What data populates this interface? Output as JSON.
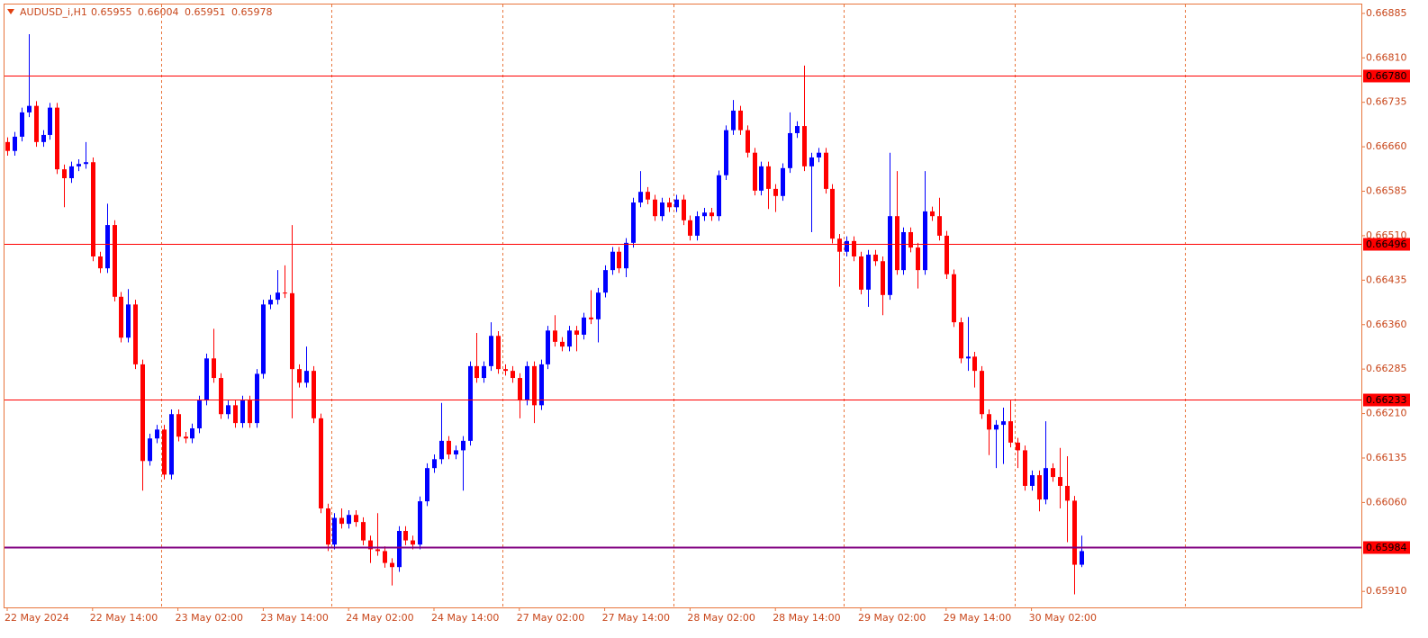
{
  "chart_data": {
    "type": "candlestick",
    "title": "AUDUSD_i,H1",
    "categories": [
      "22 May 2024",
      null,
      null,
      null,
      null,
      null,
      null,
      null,
      null,
      null,
      null,
      null,
      "22 May 14:00",
      null,
      null,
      null,
      null,
      null,
      null,
      null,
      null,
      null,
      null,
      null,
      "23 May 02:00",
      null,
      null,
      null,
      null,
      null,
      null,
      null,
      null,
      null,
      null,
      null,
      "23 May 14:00",
      null,
      null,
      null,
      null,
      null,
      null,
      null,
      null,
      null,
      null,
      null,
      "24 May 02:00",
      null,
      null,
      null,
      null,
      null,
      null,
      null,
      null,
      null,
      null,
      null,
      "24 May 14:00",
      null,
      null,
      null,
      null,
      null,
      null,
      null,
      null,
      null,
      null,
      null,
      "27 May 02:00",
      null,
      null,
      null,
      null,
      null,
      null,
      null,
      null,
      null,
      null,
      null,
      "27 May 14:00",
      null,
      null,
      null,
      null,
      null,
      null,
      null,
      null,
      null,
      null,
      null,
      "28 May 02:00",
      null,
      null,
      null,
      null,
      null,
      null,
      null,
      null,
      null,
      null,
      null,
      "28 May 14:00",
      null,
      null,
      null,
      null,
      null,
      null,
      null,
      null,
      null,
      null,
      null,
      "29 May 02:00",
      null,
      null,
      null,
      null,
      null,
      null,
      null,
      null,
      null,
      null,
      null,
      "29 May 14:00",
      null,
      null,
      null,
      null,
      null,
      null,
      null,
      null,
      null,
      null,
      null,
      "30 May 02:00",
      null,
      null,
      null,
      null,
      null,
      null,
      null
    ],
    "open": [
      0.66668,
      0.66653,
      0.66677,
      0.66718,
      0.66729,
      0.66668,
      0.6668,
      0.66726,
      0.66622,
      0.66607,
      0.66627,
      0.66631,
      0.66634,
      0.66475,
      0.66455,
      0.66528,
      0.66407,
      0.66338,
      0.66394,
      0.66293,
      0.6613,
      0.66168,
      0.66183,
      0.66107,
      0.66209,
      0.66171,
      0.66168,
      0.66185,
      0.66232,
      0.66303,
      0.6627,
      0.66209,
      0.66224,
      0.66194,
      0.66232,
      0.66194,
      0.66277,
      0.66394,
      0.66402,
      0.66414,
      0.66413,
      0.66285,
      0.66262,
      0.66282,
      0.66202,
      0.6605,
      0.65989,
      0.66034,
      0.66024,
      0.66039,
      0.66027,
      0.65996,
      0.65981,
      0.65978,
      0.65958,
      0.65951,
      0.66012,
      0.65996,
      0.65989,
      0.66062,
      0.66118,
      0.66133,
      0.66164,
      0.66141,
      0.66148,
      0.66164,
      0.6629,
      0.6627,
      0.6629,
      0.66341,
      0.66285,
      0.66282,
      0.6627,
      0.66232,
      0.6629,
      0.66224,
      0.66293,
      0.6635,
      0.66331,
      0.66323,
      0.6635,
      0.66343,
      0.66372,
      0.66369,
      0.66414,
      0.66452,
      0.66483,
      0.66455,
      0.66498,
      0.66566,
      0.66584,
      0.66571,
      0.66543,
      0.66566,
      0.66558,
      0.66571,
      0.66536,
      0.6651,
      0.66543,
      0.66549,
      0.66543,
      0.66612,
      0.66688,
      0.66721,
      0.66688,
      0.6665,
      0.66586,
      0.66627,
      0.66589,
      0.66577,
      0.66624,
      0.66683,
      0.66695,
      0.66627,
      0.66642,
      0.6665,
      0.66589,
      0.66505,
      0.66483,
      0.66501,
      0.66475,
      0.66419,
      0.66478,
      0.66467,
      0.6641,
      0.66543,
      0.66452,
      0.66516,
      0.6649,
      0.66452,
      0.66551,
      0.66543,
      0.6651,
      0.66445,
      0.66364,
      0.66303,
      0.66306,
      0.66282,
      0.66209,
      0.66183,
      0.66191,
      0.66197,
      0.66161,
      0.66148,
      0.66088,
      0.66106,
      0.66065,
      0.66118,
      0.66103,
      0.66088,
      0.66063,
      0.65955
    ],
    "high": [
      0.66676,
      0.66685,
      0.66726,
      0.6685,
      0.66737,
      0.66688,
      0.66734,
      0.66734,
      0.6663,
      0.66635,
      0.66639,
      0.66668,
      0.66642,
      0.66483,
      0.66564,
      0.66536,
      0.66415,
      0.6642,
      0.66402,
      0.66301,
      0.66176,
      0.66191,
      0.66191,
      0.66217,
      0.66217,
      0.66179,
      0.66193,
      0.6624,
      0.66311,
      0.66353,
      0.66278,
      0.66232,
      0.66232,
      0.6624,
      0.6624,
      0.66285,
      0.66402,
      0.6641,
      0.66452,
      0.6646,
      0.66528,
      0.66293,
      0.66323,
      0.6629,
      0.6621,
      0.66058,
      0.66042,
      0.6605,
      0.66047,
      0.66047,
      0.66035,
      0.66004,
      0.66042,
      0.65986,
      0.65966,
      0.6602,
      0.6602,
      0.66004,
      0.6607,
      0.66126,
      0.66141,
      0.66228,
      0.66172,
      0.66156,
      0.66172,
      0.66298,
      0.66346,
      0.66298,
      0.66364,
      0.66349,
      0.66293,
      0.6629,
      0.66278,
      0.66298,
      0.66298,
      0.66301,
      0.66358,
      0.66376,
      0.66339,
      0.66358,
      0.66358,
      0.6638,
      0.66418,
      0.66422,
      0.6646,
      0.66491,
      0.66491,
      0.66506,
      0.66574,
      0.66619,
      0.66592,
      0.66579,
      0.66574,
      0.66574,
      0.66579,
      0.66579,
      0.66544,
      0.66551,
      0.66557,
      0.66557,
      0.6662,
      0.66696,
      0.66739,
      0.66729,
      0.66696,
      0.66658,
      0.66635,
      0.66635,
      0.66597,
      0.66632,
      0.66718,
      0.66703,
      0.66797,
      0.6665,
      0.66658,
      0.66658,
      0.66597,
      0.66513,
      0.66509,
      0.66509,
      0.66483,
      0.66486,
      0.66486,
      0.66475,
      0.6665,
      0.66619,
      0.66524,
      0.66524,
      0.66498,
      0.66619,
      0.66559,
      0.66574,
      0.66518,
      0.66453,
      0.66372,
      0.66373,
      0.66314,
      0.6629,
      0.66217,
      0.66199,
      0.6622,
      0.66232,
      0.66169,
      0.66156,
      0.66114,
      0.66114,
      0.66197,
      0.66126,
      0.66152,
      0.66138,
      0.66071,
      0.66004
    ],
    "low": [
      0.66645,
      0.66645,
      0.66669,
      0.6671,
      0.6666,
      0.6666,
      0.66672,
      0.66614,
      0.66558,
      0.66599,
      0.66619,
      0.66623,
      0.66467,
      0.66447,
      0.66447,
      0.66399,
      0.6633,
      0.6633,
      0.66285,
      0.6608,
      0.66122,
      0.6616,
      0.66099,
      0.66099,
      0.66163,
      0.6616,
      0.6616,
      0.66177,
      0.66224,
      0.66262,
      0.66201,
      0.66201,
      0.66186,
      0.66186,
      0.66186,
      0.66186,
      0.66269,
      0.66386,
      0.66394,
      0.66405,
      0.66202,
      0.66254,
      0.66254,
      0.66194,
      0.66042,
      0.65978,
      0.65981,
      0.66016,
      0.66016,
      0.66019,
      0.65988,
      0.65958,
      0.6597,
      0.6595,
      0.6592,
      0.65943,
      0.65988,
      0.65981,
      0.65981,
      0.66054,
      0.6611,
      0.66125,
      0.66133,
      0.66133,
      0.6608,
      0.66156,
      0.66262,
      0.66262,
      0.66282,
      0.66277,
      0.66274,
      0.66262,
      0.66202,
      0.66224,
      0.66194,
      0.66216,
      0.66285,
      0.66323,
      0.66315,
      0.66315,
      0.66315,
      0.66335,
      0.66361,
      0.6633,
      0.66406,
      0.66444,
      0.66447,
      0.6644,
      0.6649,
      0.66558,
      0.66563,
      0.66535,
      0.66535,
      0.6655,
      0.6655,
      0.66528,
      0.66502,
      0.66502,
      0.66535,
      0.66535,
      0.66535,
      0.66604,
      0.6668,
      0.6668,
      0.66642,
      0.66578,
      0.66578,
      0.66555,
      0.6655,
      0.66569,
      0.66616,
      0.66675,
      0.66619,
      0.66516,
      0.66634,
      0.66581,
      0.66497,
      0.66424,
      0.66475,
      0.66467,
      0.66411,
      0.6639,
      0.66459,
      0.66376,
      0.66402,
      0.66444,
      0.66444,
      0.66482,
      0.66421,
      0.66444,
      0.66535,
      0.66502,
      0.66437,
      0.66356,
      0.66295,
      0.66282,
      0.66254,
      0.66201,
      0.6614,
      0.66118,
      0.66125,
      0.66153,
      0.66118,
      0.6608,
      0.6608,
      0.66045,
      0.66057,
      0.66095,
      0.6605,
      0.65993,
      0.65905,
      0.65951
    ],
    "close": [
      0.66653,
      0.66677,
      0.66718,
      0.66729,
      0.66668,
      0.6668,
      0.66726,
      0.66622,
      0.66607,
      0.66627,
      0.66631,
      0.66634,
      0.66475,
      0.66455,
      0.66528,
      0.66407,
      0.66338,
      0.66394,
      0.66293,
      0.6613,
      0.66168,
      0.66183,
      0.66107,
      0.66209,
      0.66171,
      0.66168,
      0.66185,
      0.66232,
      0.66303,
      0.6627,
      0.66209,
      0.66224,
      0.66194,
      0.66232,
      0.66194,
      0.66277,
      0.66394,
      0.66402,
      0.66414,
      0.66413,
      0.66285,
      0.66262,
      0.66282,
      0.66202,
      0.6605,
      0.65989,
      0.66034,
      0.66024,
      0.66039,
      0.66027,
      0.65996,
      0.65981,
      0.65978,
      0.65958,
      0.65951,
      0.66012,
      0.65996,
      0.65989,
      0.66062,
      0.66118,
      0.66133,
      0.66164,
      0.66141,
      0.66148,
      0.66164,
      0.6629,
      0.6627,
      0.6629,
      0.66341,
      0.66285,
      0.66282,
      0.6627,
      0.66232,
      0.6629,
      0.66224,
      0.66293,
      0.6635,
      0.66331,
      0.66323,
      0.6635,
      0.66343,
      0.66372,
      0.66369,
      0.66414,
      0.66452,
      0.66483,
      0.66455,
      0.66498,
      0.66566,
      0.66584,
      0.66571,
      0.66543,
      0.66566,
      0.66558,
      0.66571,
      0.66536,
      0.6651,
      0.66543,
      0.66549,
      0.66543,
      0.66612,
      0.66688,
      0.66721,
      0.66688,
      0.6665,
      0.66586,
      0.66627,
      0.66589,
      0.66577,
      0.66624,
      0.66683,
      0.66695,
      0.66627,
      0.66642,
      0.6665,
      0.66589,
      0.66505,
      0.66483,
      0.66501,
      0.66475,
      0.66419,
      0.66478,
      0.66467,
      0.6641,
      0.66543,
      0.66452,
      0.66516,
      0.6649,
      0.66452,
      0.66551,
      0.66543,
      0.6651,
      0.66445,
      0.66364,
      0.66303,
      0.66306,
      0.66282,
      0.66209,
      0.66183,
      0.66191,
      0.66197,
      0.66161,
      0.66148,
      0.66088,
      0.66106,
      0.66065,
      0.66118,
      0.66103,
      0.66088,
      0.66063,
      0.65955,
      0.65978
    ],
    "up_color": "#0000ff",
    "down_color": "#ff0000",
    "ylim": [
      0.65883,
      0.669
    ],
    "yticks": [
      0.66885,
      {
        "value": 0.6681,
        "label": "0.66810"
      },
      0.66735,
      {
        "value": 0.6666,
        "label": "0.66660"
      },
      0.66585,
      {
        "value": 0.6651,
        "label": "0.66510"
      },
      0.66435,
      {
        "value": 0.6636,
        "label": "0.66360"
      },
      0.66285,
      {
        "value": 0.6621,
        "label": "0.66210"
      },
      0.66135,
      {
        "value": 0.6606,
        "label": "0.66060"
      },
      {
        "value": 0.6591,
        "label": "0.65910"
      }
    ],
    "hlines": [
      {
        "value": 0.6678,
        "label": "0.66780",
        "color": "#ff0000"
      },
      {
        "value": 0.66496,
        "color": "#ff0000"
      },
      {
        "value": 0.66233,
        "color": "#ff0000"
      },
      {
        "value": 0.65984,
        "color": "#800080"
      }
    ]
  }
}
